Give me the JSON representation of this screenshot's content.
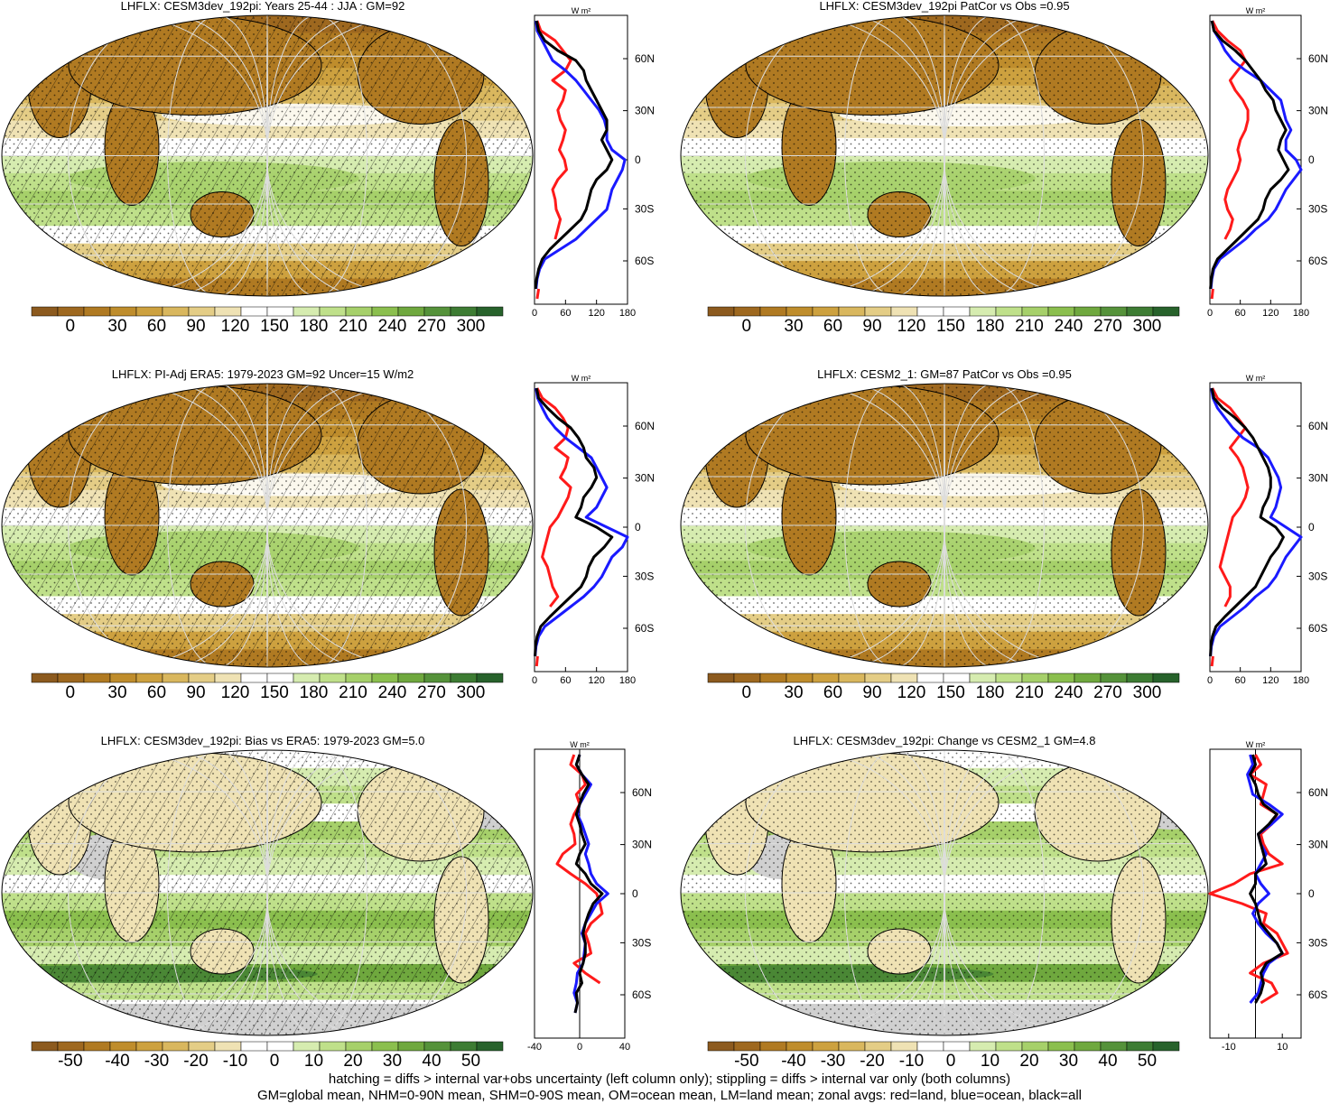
{
  "colors": {
    "brown_green_scale": [
      "#8c5a1e",
      "#9e681f",
      "#b07a22",
      "#bf8d2c",
      "#cda13f",
      "#d9b75e",
      "#e4cd86",
      "#efe2b4",
      "#ffffff",
      "#ffffff",
      "#d6ecb0",
      "#bfe08a",
      "#a6d06a",
      "#8bbf4e",
      "#6fa83e",
      "#55923a",
      "#3d7c33",
      "#27622b"
    ],
    "zonal_land": "#ff1a1a",
    "zonal_ocean": "#1a1aff",
    "zonal_all": "#000000",
    "missing": "#d0d0d0"
  },
  "footnote": {
    "line1": "hatching = diffs > internal var+obs uncertainty (left column only); stippling = diffs > internal var only (both columns)",
    "line2": "GM=global mean, NHM=0-90N mean, SHM=0-90S mean, OM=ocean mean, LM=land mean; zonal avgs: red=land, blue=ocean, black=all"
  },
  "chart_data": [
    {
      "type": "heatmap",
      "title": "LHFLX: CESM3dev_192pi: Years 25-44 : JJA : GM=92",
      "colorbar_ticks": [
        "0",
        "30",
        "60",
        "90",
        "120",
        "150",
        "180",
        "210",
        "240",
        "270",
        "300"
      ],
      "zonal_units": "W m²",
      "zonal_xticks": [
        "0",
        "60",
        "120",
        "180"
      ],
      "zonal_xlim": [
        0,
        180
      ],
      "lat_ticks": [
        "60N",
        "30N",
        "0",
        "30S",
        "60S"
      ],
      "series": [
        {
          "values": [
            5,
            12,
            40,
            55,
            70,
            60,
            35,
            60,
            55,
            45,
            50,
            60,
            55,
            48,
            58,
            62,
            45,
            35,
            40,
            42,
            50,
            45,
            40,
            null,
            null,
            null,
            null,
            8,
            5
          ]
        },
        {
          "values": [
            3,
            5,
            15,
            25,
            35,
            60,
            80,
            95,
            110,
            125,
            135,
            140,
            140,
            150,
            175,
            170,
            160,
            150,
            145,
            140,
            120,
            100,
            80,
            50,
            20,
            10,
            5,
            3,
            null
          ]
        },
        {
          "values": [
            4,
            8,
            20,
            45,
            80,
            95,
            100,
            110,
            120,
            130,
            140,
            140,
            130,
            140,
            150,
            140,
            120,
            110,
            105,
            100,
            90,
            70,
            50,
            30,
            15,
            8,
            4,
            2,
            null
          ]
        }
      ]
    },
    {
      "type": "heatmap",
      "title": "LHFLX: CESM3dev_192pi PatCor vs Obs =0.95",
      "colorbar_ticks": [
        "0",
        "30",
        "60",
        "90",
        "120",
        "150",
        "180",
        "210",
        "240",
        "270",
        "300"
      ],
      "zonal_units": "W m²",
      "zonal_xticks": [
        "0",
        "60",
        "120",
        "180"
      ],
      "zonal_xlim": [
        0,
        180
      ],
      "lat_ticks": [
        "60N",
        "30N",
        "0",
        "30S",
        "60S"
      ],
      "series": [
        {
          "values": [
            5,
            15,
            35,
            60,
            70,
            55,
            40,
            50,
            65,
            75,
            75,
            70,
            60,
            55,
            60,
            55,
            45,
            35,
            30,
            35,
            45,
            40,
            30,
            null,
            null,
            null,
            null,
            6,
            4
          ]
        },
        {
          "values": [
            4,
            8,
            20,
            30,
            45,
            70,
            100,
            120,
            140,
            145,
            150,
            160,
            150,
            150,
            170,
            180,
            165,
            150,
            140,
            130,
            115,
            90,
            70,
            45,
            20,
            8,
            4,
            2,
            null
          ]
        },
        {
          "values": [
            4,
            8,
            25,
            50,
            70,
            85,
            100,
            110,
            125,
            130,
            140,
            150,
            140,
            135,
            145,
            155,
            140,
            120,
            110,
            105,
            95,
            75,
            55,
            35,
            15,
            6,
            3,
            1,
            null
          ]
        }
      ]
    },
    {
      "type": "heatmap",
      "title": "LHFLX: PI-Adj ERA5: 1979-2023 GM=92 Uncer=15 W/m2",
      "colorbar_ticks": [
        "0",
        "30",
        "60",
        "90",
        "120",
        "150",
        "180",
        "210",
        "240",
        "270",
        "300"
      ],
      "zonal_units": "W m²",
      "zonal_xticks": [
        "0",
        "60",
        "120",
        "180"
      ],
      "zonal_xlim": [
        0,
        180
      ],
      "lat_ticks": [
        "60N",
        "30N",
        "0",
        "30S",
        "60S"
      ],
      "series": [
        {
          "values": [
            5,
            15,
            40,
            55,
            65,
            60,
            40,
            65,
            60,
            50,
            70,
            65,
            55,
            45,
            30,
            25,
            20,
            15,
            25,
            30,
            35,
            45,
            30,
            null,
            null,
            null,
            null,
            6,
            4
          ]
        },
        {
          "values": [
            3,
            6,
            15,
            25,
            40,
            60,
            85,
            110,
            120,
            130,
            140,
            130,
            120,
            100,
            140,
            185,
            170,
            150,
            140,
            130,
            115,
            95,
            70,
            45,
            20,
            8,
            3,
            1,
            null
          ]
        },
        {
          "values": [
            4,
            8,
            25,
            45,
            70,
            85,
            95,
            100,
            115,
            120,
            110,
            95,
            90,
            80,
            120,
            150,
            135,
            115,
            105,
            100,
            90,
            70,
            50,
            30,
            12,
            5,
            2,
            1,
            null
          ]
        }
      ]
    },
    {
      "type": "heatmap",
      "title": "LHFLX: CESM2_1: GM=87 PatCor vs Obs =0.95",
      "colorbar_ticks": [
        "0",
        "30",
        "60",
        "90",
        "120",
        "150",
        "180",
        "210",
        "240",
        "270",
        "300"
      ],
      "zonal_units": "W m²",
      "zonal_xticks": [
        "0",
        "60",
        "120",
        "180"
      ],
      "zonal_xlim": [
        0,
        180
      ],
      "lat_ticks": [
        "60N",
        "30N",
        "0",
        "30S",
        "60S"
      ],
      "series": [
        {
          "values": [
            5,
            15,
            40,
            55,
            70,
            55,
            40,
            55,
            65,
            70,
            75,
            70,
            60,
            45,
            40,
            35,
            30,
            25,
            20,
            30,
            40,
            40,
            30,
            null,
            null,
            null,
            null,
            6,
            4
          ]
        },
        {
          "values": [
            3,
            6,
            15,
            30,
            45,
            65,
            95,
            115,
            125,
            135,
            140,
            135,
            130,
            120,
            150,
            180,
            165,
            150,
            140,
            130,
            115,
            90,
            70,
            45,
            20,
            8,
            3,
            1,
            null
          ]
        },
        {
          "values": [
            4,
            8,
            25,
            50,
            70,
            85,
            95,
            105,
            115,
            120,
            120,
            115,
            105,
            100,
            130,
            145,
            135,
            120,
            110,
            100,
            90,
            70,
            50,
            30,
            12,
            5,
            2,
            1,
            null
          ]
        }
      ]
    },
    {
      "type": "heatmap",
      "title": "LHFLX: CESM3dev_192pi: Bias vs ERA5: 1979-2023 GM=5.0",
      "colorbar_ticks": [
        "-50",
        "-40",
        "-30",
        "-20",
        "-10",
        "0",
        "10",
        "20",
        "30",
        "40",
        "50"
      ],
      "zonal_units": "W m²",
      "zonal_xticks": [
        "-40",
        "0",
        "40"
      ],
      "zonal_xlim": [
        -40,
        40
      ],
      "lat_ticks": [
        "60N",
        "30N",
        "0",
        "30S",
        "60S"
      ],
      "series": [
        {
          "values": [
            -5,
            -8,
            2,
            5,
            -3,
            0,
            -5,
            -8,
            -5,
            -4,
            -15,
            -20,
            -8,
            5,
            15,
            18,
            20,
            10,
            5,
            8,
            10,
            -5,
            5,
            18,
            null,
            null,
            null,
            null,
            null
          ]
        },
        {
          "values": [
            0,
            -3,
            2,
            10,
            5,
            0,
            -2,
            2,
            5,
            8,
            5,
            8,
            10,
            15,
            25,
            15,
            10,
            5,
            2,
            5,
            4,
            3,
            -2,
            -3,
            -5,
            -2,
            -4,
            null,
            null
          ]
        },
        {
          "values": [
            0,
            -3,
            2,
            8,
            3,
            0,
            -3,
            0,
            2,
            5,
            0,
            -3,
            5,
            10,
            20,
            12,
            8,
            5,
            3,
            5,
            5,
            3,
            0,
            2,
            -3,
            -2,
            -4,
            null,
            null
          ]
        }
      ]
    },
    {
      "type": "heatmap",
      "title": "LHFLX: CESM3dev_192pi: Change vs CESM2_1 GM=4.8",
      "colorbar_ticks": [
        "-50",
        "-40",
        "-30",
        "-20",
        "-10",
        "0",
        "10",
        "20",
        "30",
        "40",
        "50"
      ],
      "zonal_units": "W m²",
      "zonal_xticks": [
        "-10",
        "10"
      ],
      "zonal_xlim": [
        -17,
        17
      ],
      "lat_ticks": [
        "60N",
        "30N",
        "0",
        "30S",
        "60S"
      ],
      "series": [
        {
          "values": [
            0,
            2,
            -2,
            4,
            3,
            2,
            8,
            6,
            2,
            3,
            5,
            10,
            -2,
            -8,
            -17,
            -5,
            4,
            3,
            8,
            10,
            12,
            3,
            -2,
            6,
            8,
            2,
            null,
            null,
            null
          ]
        },
        {
          "values": [
            -2,
            -1,
            -3,
            -2,
            -1,
            5,
            10,
            6,
            1,
            2,
            4,
            2,
            0,
            2,
            5,
            1,
            -1,
            1,
            4,
            8,
            10,
            5,
            3,
            2,
            1,
            -2,
            null,
            null,
            null
          ]
        },
        {
          "values": [
            -1,
            0,
            -2,
            0,
            1,
            3,
            8,
            5,
            1,
            2,
            3,
            4,
            0,
            0,
            -2,
            0,
            1,
            2,
            5,
            8,
            10,
            4,
            2,
            3,
            2,
            0,
            null,
            null,
            null
          ]
        }
      ]
    }
  ]
}
